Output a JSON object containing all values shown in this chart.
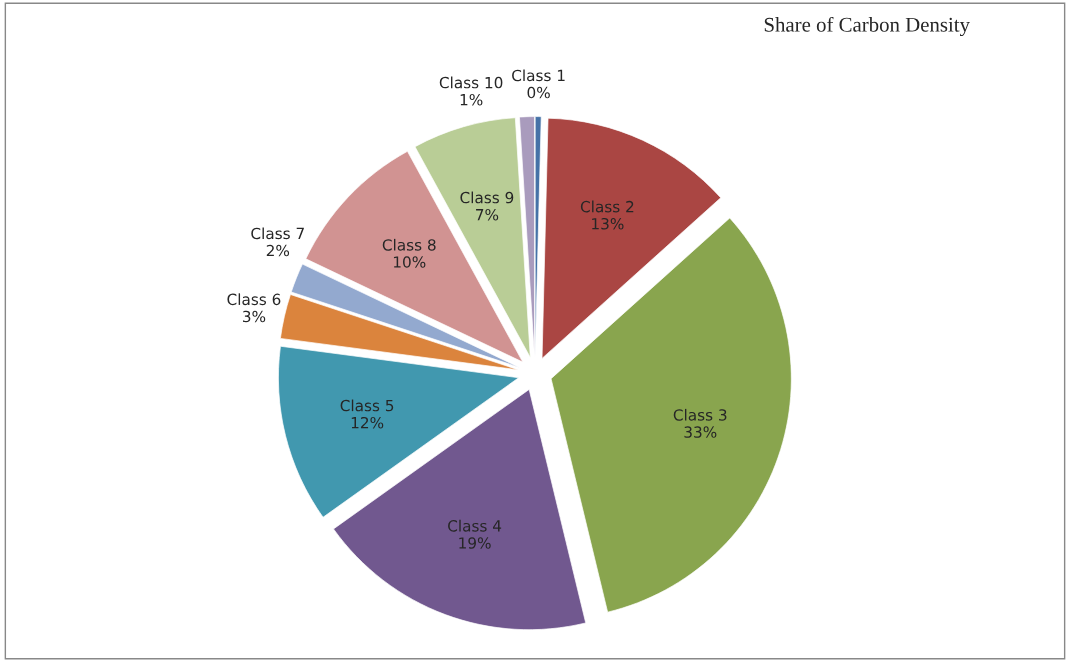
{
  "chart_data": {
    "type": "pie",
    "title": "Share of Carbon Density",
    "categories": [
      "Class 1",
      "Class 2",
      "Class 3",
      "Class 4",
      "Class 5",
      "Class 6",
      "Class 7",
      "Class 8",
      "Class 9",
      "Class 10"
    ],
    "values": [
      0.4,
      13,
      33,
      19,
      12,
      3,
      2,
      10,
      7,
      1
    ],
    "value_labels": [
      "0%",
      "13%",
      "33%",
      "19%",
      "12%",
      "3%",
      "2%",
      "10%",
      "7%",
      "1%"
    ],
    "colors": [
      "#4572a7",
      "#aa4643",
      "#89a54e",
      "#71588f",
      "#4198af",
      "#db843d",
      "#93a9cf",
      "#d19392",
      "#b9cd96",
      "#a99bbd"
    ],
    "legend": false
  }
}
